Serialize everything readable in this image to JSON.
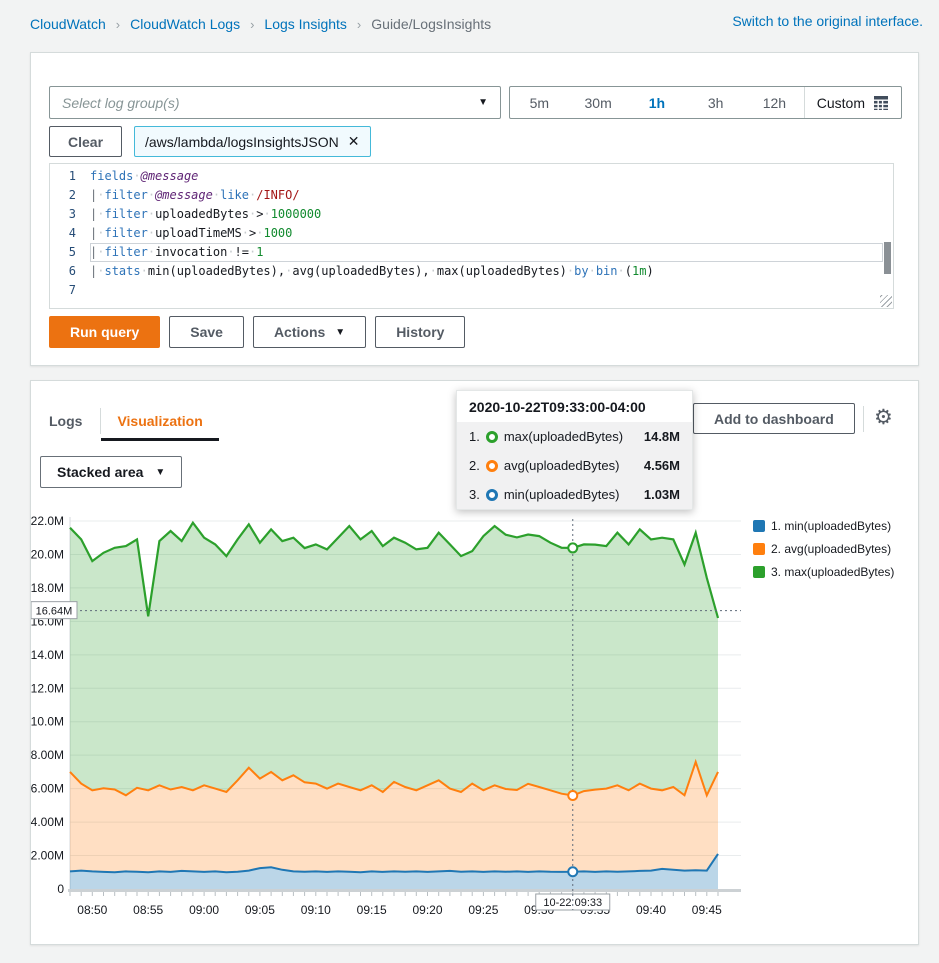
{
  "breadcrumb": {
    "items": [
      "CloudWatch",
      "CloudWatch Logs",
      "Logs Insights",
      "Guide/LogsInsights"
    ],
    "separator": "›"
  },
  "header": {
    "switch_link": "Switch to the original interface."
  },
  "query_panel": {
    "log_group_select": {
      "placeholder": "Select log group(s)"
    },
    "time_range": {
      "options": [
        "5m",
        "30m",
        "1h",
        "3h",
        "12h"
      ],
      "selected": "1h",
      "custom_label": "Custom"
    },
    "clear_button": "Clear",
    "log_group_tag": "/aws/lambda/logsInsightsJSON",
    "editor": {
      "lines": [
        {
          "num": "1",
          "active": false,
          "tokens": [
            [
              "kw",
              "fields"
            ],
            [
              "ws",
              "·"
            ],
            [
              "field",
              "@message"
            ]
          ]
        },
        {
          "num": "2",
          "active": false,
          "tokens": [
            [
              "pipe",
              "|"
            ],
            [
              "ws",
              "·"
            ],
            [
              "kw",
              "filter"
            ],
            [
              "ws",
              "·"
            ],
            [
              "field",
              "@message"
            ],
            [
              "ws",
              "·"
            ],
            [
              "kw",
              "like"
            ],
            [
              "ws",
              "·"
            ],
            [
              "regex",
              "/INFO/"
            ]
          ]
        },
        {
          "num": "3",
          "active": false,
          "tokens": [
            [
              "pipe",
              "|"
            ],
            [
              "ws",
              "·"
            ],
            [
              "kw",
              "filter"
            ],
            [
              "ws",
              "·"
            ],
            [
              "plain",
              "uploadedBytes"
            ],
            [
              "ws",
              "·"
            ],
            [
              "op",
              ">"
            ],
            [
              "ws",
              "·"
            ],
            [
              "num",
              "1000000"
            ]
          ]
        },
        {
          "num": "4",
          "active": false,
          "tokens": [
            [
              "pipe",
              "|"
            ],
            [
              "ws",
              "·"
            ],
            [
              "kw",
              "filter"
            ],
            [
              "ws",
              "·"
            ],
            [
              "plain",
              "uploadTimeMS"
            ],
            [
              "ws",
              "·"
            ],
            [
              "op",
              ">"
            ],
            [
              "ws",
              "·"
            ],
            [
              "num",
              "1000"
            ]
          ]
        },
        {
          "num": "5",
          "active": true,
          "tokens": [
            [
              "pipe",
              "|"
            ],
            [
              "ws",
              "·"
            ],
            [
              "kw",
              "filter"
            ],
            [
              "ws",
              "·"
            ],
            [
              "plain",
              "invocation"
            ],
            [
              "ws",
              "·"
            ],
            [
              "op",
              "!="
            ],
            [
              "ws",
              "·"
            ],
            [
              "num",
              "1"
            ]
          ]
        },
        {
          "num": "6",
          "active": false,
          "tokens": [
            [
              "pipe",
              "|"
            ],
            [
              "ws",
              "·"
            ],
            [
              "kw",
              "stats"
            ],
            [
              "ws",
              "·"
            ],
            [
              "plain",
              "min(uploadedBytes),"
            ],
            [
              "ws",
              "·"
            ],
            [
              "plain",
              "avg(uploadedBytes),"
            ],
            [
              "ws",
              "·"
            ],
            [
              "plain",
              "max(uploadedBytes)"
            ],
            [
              "ws",
              "·"
            ],
            [
              "kw",
              "by"
            ],
            [
              "ws",
              "·"
            ],
            [
              "kw",
              "bin"
            ],
            [
              "ws",
              "·"
            ],
            [
              "plain",
              "("
            ],
            [
              "num",
              "1m"
            ],
            [
              "plain",
              ")"
            ]
          ]
        },
        {
          "num": "7",
          "active": false,
          "tokens": []
        }
      ]
    },
    "buttons": {
      "run_query": "Run query",
      "save": "Save",
      "actions": "Actions",
      "history": "History"
    }
  },
  "results_panel": {
    "tabs": {
      "logs": "Logs",
      "visualization": "Visualization"
    },
    "add_to_dashboard": "Add to dashboard",
    "chart_type": {
      "label": "Stacked area"
    },
    "tooltip": {
      "title": "2020-10-22T09:33:00-04:00",
      "rows": [
        {
          "index": "1.",
          "label": "max(uploadedBytes)",
          "value": "14.8M",
          "color": "#2ca02c"
        },
        {
          "index": "2.",
          "label": "avg(uploadedBytes)",
          "value": "4.56M",
          "color": "#ff7f0e"
        },
        {
          "index": "3.",
          "label": "min(uploadedBytes)",
          "value": "1.03M",
          "color": "#1f77b4"
        }
      ]
    },
    "legend": [
      {
        "label": "1. min(uploadedBytes)",
        "color": "#1f77b4"
      },
      {
        "label": "2. avg(uploadedBytes)",
        "color": "#ff7f0e"
      },
      {
        "label": "3. max(uploadedBytes)",
        "color": "#2ca02c"
      }
    ]
  },
  "chart_data": {
    "type": "area",
    "stacked": true,
    "x": [
      "08:48",
      "08:49",
      "08:50",
      "08:51",
      "08:52",
      "08:53",
      "08:54",
      "08:55",
      "08:56",
      "08:57",
      "08:58",
      "08:59",
      "09:00",
      "09:01",
      "09:02",
      "09:03",
      "09:04",
      "09:05",
      "09:06",
      "09:07",
      "09:08",
      "09:09",
      "09:10",
      "09:11",
      "09:12",
      "09:13",
      "09:14",
      "09:15",
      "09:16",
      "09:17",
      "09:18",
      "09:19",
      "09:20",
      "09:21",
      "09:22",
      "09:23",
      "09:24",
      "09:25",
      "09:26",
      "09:27",
      "09:28",
      "09:29",
      "09:30",
      "09:31",
      "09:32",
      "09:33",
      "09:34",
      "09:35",
      "09:36",
      "09:37",
      "09:38",
      "09:39",
      "09:40",
      "09:41",
      "09:42",
      "09:43",
      "09:44",
      "09:45",
      "09:46"
    ],
    "series": [
      {
        "name": "min(uploadedBytes)",
        "color": "#1f77b4",
        "fill": "rgba(31,119,180,0.30)",
        "values": [
          1.05,
          1.1,
          1.05,
          1.02,
          1.0,
          1.05,
          1.03,
          1.0,
          1.05,
          1.02,
          1.08,
          1.05,
          1.02,
          1.05,
          1.0,
          1.03,
          1.1,
          1.25,
          1.3,
          1.15,
          1.05,
          1.03,
          1.05,
          1.02,
          1.05,
          1.03,
          1.0,
          1.05,
          1.02,
          1.05,
          1.03,
          1.05,
          1.02,
          1.05,
          1.08,
          1.03,
          1.05,
          1.02,
          1.05,
          1.03,
          1.05,
          1.02,
          1.05,
          1.03,
          1.02,
          1.03,
          1.05,
          1.02,
          1.05,
          1.03,
          1.05,
          1.08,
          1.1,
          1.2,
          1.15,
          1.1,
          1.12,
          1.1,
          2.1
        ]
      },
      {
        "name": "avg(uploadedBytes)",
        "color": "#ff7f0e",
        "fill": "rgba(255,127,14,0.25)",
        "values": [
          5.95,
          5.2,
          4.85,
          5.0,
          4.95,
          4.55,
          5.02,
          4.9,
          5.15,
          4.93,
          5.02,
          4.85,
          5.18,
          4.95,
          4.8,
          5.47,
          6.15,
          5.35,
          5.7,
          5.35,
          5.75,
          5.35,
          5.25,
          4.98,
          5.25,
          5.07,
          4.9,
          5.15,
          4.78,
          5.35,
          5.07,
          4.85,
          5.18,
          5.45,
          4.92,
          4.77,
          5.25,
          4.88,
          5.15,
          4.95,
          4.87,
          5.27,
          5.05,
          4.87,
          4.68,
          4.56,
          4.8,
          4.92,
          4.95,
          5.17,
          4.85,
          5.22,
          4.9,
          4.7,
          4.95,
          4.5,
          6.48,
          4.5,
          4.9
        ]
      },
      {
        "name": "max(uploadedBytes)",
        "color": "#2ca02c",
        "fill": "rgba(44,160,44,0.25)",
        "values": [
          14.6,
          14.6,
          13.7,
          14.08,
          14.45,
          14.9,
          14.85,
          10.4,
          14.6,
          15.45,
          14.7,
          16.0,
          14.8,
          14.6,
          14.1,
          14.4,
          14.55,
          14.1,
          14.5,
          14.3,
          14.2,
          14.0,
          14.3,
          14.3,
          14.7,
          15.6,
          15.0,
          15.2,
          14.7,
          14.6,
          14.6,
          14.4,
          14.2,
          14.8,
          14.6,
          14.1,
          13.9,
          15.2,
          15.5,
          15.2,
          15.1,
          14.9,
          15.0,
          14.8,
          14.7,
          14.8,
          14.75,
          14.65,
          14.5,
          15.1,
          14.7,
          15.2,
          14.9,
          15.1,
          14.8,
          13.8,
          13.7,
          13.0,
          9.2
        ]
      }
    ],
    "ylim": [
      0,
      22
    ],
    "yticks": [
      {
        "v": 22,
        "t": "22.0M"
      },
      {
        "v": 20,
        "t": "20.0M"
      },
      {
        "v": 18,
        "t": "18.0M"
      },
      {
        "v": 16,
        "t": "16.0M"
      },
      {
        "v": 14,
        "t": "14.0M"
      },
      {
        "v": 12,
        "t": "12.0M"
      },
      {
        "v": 10,
        "t": "10.0M"
      },
      {
        "v": 8,
        "t": "8.00M"
      },
      {
        "v": 6,
        "t": "6.00M"
      },
      {
        "v": 4,
        "t": "4.00M"
      },
      {
        "v": 2,
        "t": "2.00M"
      },
      {
        "v": 0,
        "t": "0"
      }
    ],
    "xtick_indices": [
      2,
      7,
      12,
      17,
      22,
      27,
      32,
      37,
      42,
      47,
      52,
      57
    ],
    "grid": "horizontal",
    "legend_position": "right",
    "crosshair": {
      "index": 45,
      "x_label": "10-22 09:33",
      "y_value": 16.64,
      "y_label": "16.64M"
    }
  }
}
